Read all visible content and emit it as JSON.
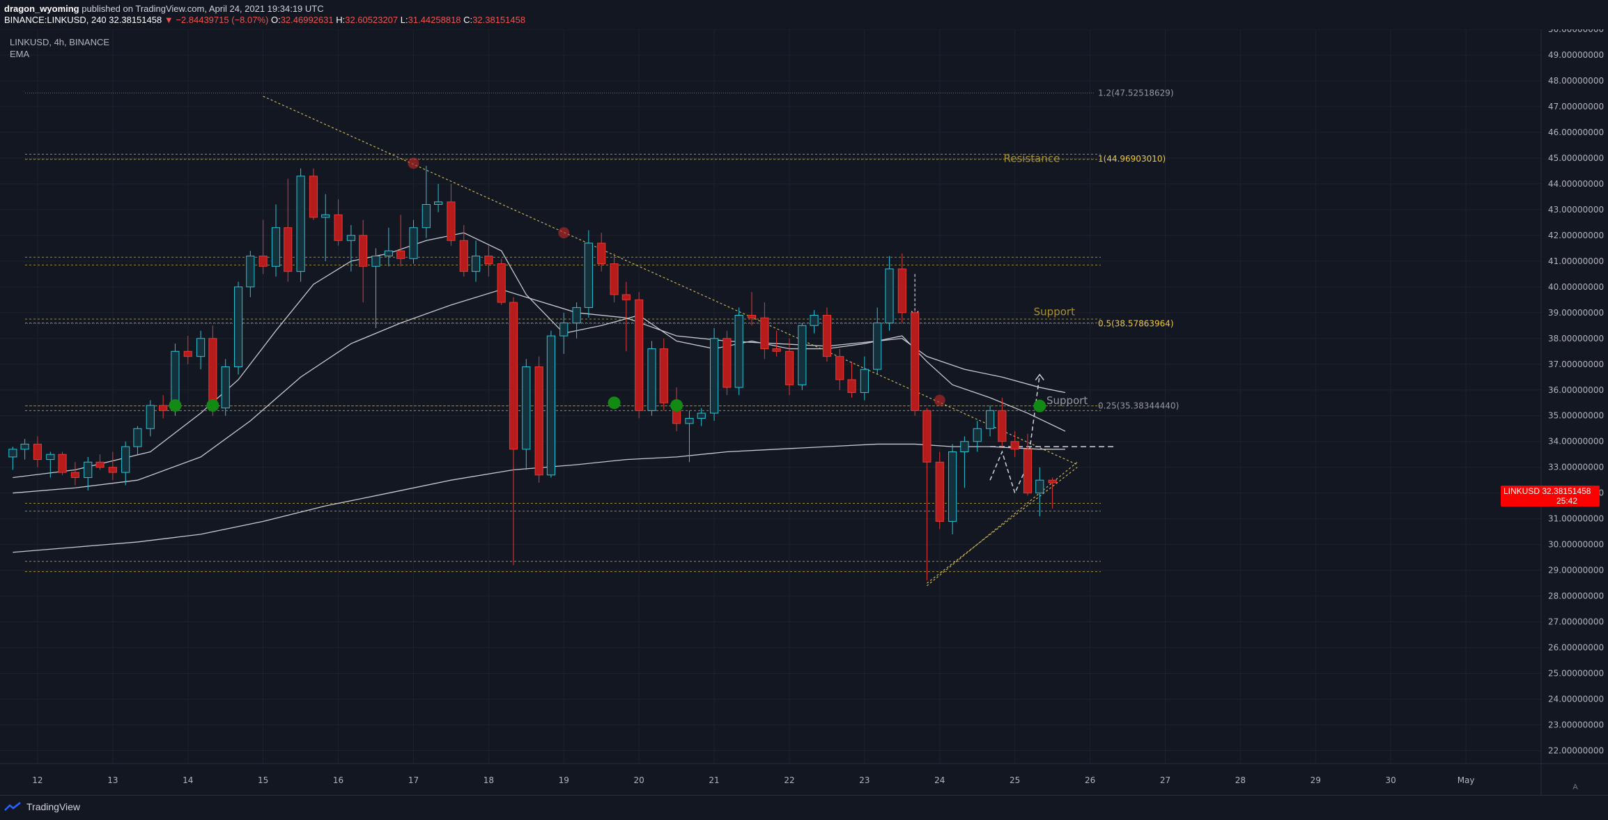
{
  "header": {
    "publisher": "dragon_wyoming",
    "published_text": "published on TradingView.com, April 24, 2021 19:34:19 UTC",
    "symbol_full": "BINANCE:LINKUSD, 240",
    "last": "32.38151458",
    "change": "▼ −2.84439715 (−8.07%)",
    "o_label": "O:",
    "o": "32.46992631",
    "h_label": "H:",
    "h": "32.60523207",
    "l_label": "L:",
    "l": "31.44258818",
    "c_label": "C:",
    "c": "32.38151458"
  },
  "legend": {
    "title": "LINKUSD, 4h, BINANCE",
    "indicator": "EMA"
  },
  "price_tag": {
    "symbol": "LINKUSD",
    "price": "32.38151458",
    "countdown": "25:42"
  },
  "footer": {
    "brand": "TradingView",
    "logo_icon": "tradingview-logo-icon",
    "axis_settings": "A"
  },
  "colors": {
    "up": "#26c6da",
    "down": "#b71c1c",
    "fib": "#c9b458",
    "grid": "#1e222d",
    "bg": "#131722"
  },
  "chart_data": {
    "type": "candlestick",
    "ylim": [
      21.5,
      50.0
    ],
    "y_ticks": [
      "22.00000000",
      "23.00000000",
      "24.00000000",
      "25.00000000",
      "26.00000000",
      "27.00000000",
      "28.00000000",
      "29.00000000",
      "30.00000000",
      "31.00000000",
      "32.00000000",
      "33.00000000",
      "34.00000000",
      "35.00000000",
      "36.00000000",
      "37.00000000",
      "38.00000000",
      "39.00000000",
      "40.00000000",
      "41.00000000",
      "42.00000000",
      "43.00000000",
      "44.00000000",
      "45.00000000",
      "46.00000000",
      "47.00000000",
      "48.00000000",
      "49.00000000",
      "50.00000000"
    ],
    "x_ticks": [
      {
        "label": "12",
        "x": 12.0
      },
      {
        "label": "13",
        "x": 13.0
      },
      {
        "label": "14",
        "x": 14.0
      },
      {
        "label": "15",
        "x": 15.0
      },
      {
        "label": "16",
        "x": 16.0
      },
      {
        "label": "17",
        "x": 17.0
      },
      {
        "label": "18",
        "x": 18.0
      },
      {
        "label": "19",
        "x": 19.0
      },
      {
        "label": "20",
        "x": 20.0
      },
      {
        "label": "21",
        "x": 21.0
      },
      {
        "label": "22",
        "x": 22.0
      },
      {
        "label": "23",
        "x": 23.0
      },
      {
        "label": "24",
        "x": 24.0
      },
      {
        "label": "25",
        "x": 25.0
      },
      {
        "label": "26",
        "x": 26.0
      },
      {
        "label": "27",
        "x": 27.0
      },
      {
        "label": "28",
        "x": 28.0
      },
      {
        "label": "29",
        "x": 29.0
      },
      {
        "label": "30",
        "x": 30.0
      },
      {
        "label": "May",
        "x": 31.0
      }
    ],
    "xlim": [
      11.5,
      32.0
    ],
    "candles": [
      [
        11.67,
        33.4,
        33.8,
        32.9,
        33.7
      ],
      [
        11.83,
        33.7,
        34.1,
        33.3,
        33.9
      ],
      [
        12.0,
        33.9,
        34.2,
        33.0,
        33.3
      ],
      [
        12.17,
        33.3,
        33.6,
        32.6,
        33.5
      ],
      [
        12.33,
        33.5,
        33.6,
        32.7,
        32.8
      ],
      [
        12.5,
        32.8,
        33.2,
        32.3,
        32.6
      ],
      [
        12.67,
        32.6,
        33.4,
        32.1,
        33.2
      ],
      [
        12.83,
        33.2,
        33.5,
        32.9,
        33.0
      ],
      [
        13.0,
        33.0,
        33.6,
        32.5,
        32.8
      ],
      [
        13.17,
        32.8,
        34.0,
        32.3,
        33.8
      ],
      [
        13.33,
        33.8,
        34.6,
        33.5,
        34.5
      ],
      [
        13.5,
        34.5,
        35.6,
        34.2,
        35.4
      ],
      [
        13.67,
        35.4,
        35.8,
        34.9,
        35.2
      ],
      [
        13.83,
        35.2,
        37.8,
        35.0,
        37.5
      ],
      [
        14.0,
        37.5,
        38.1,
        37.0,
        37.3
      ],
      [
        14.17,
        37.3,
        38.3,
        36.8,
        38.0
      ],
      [
        14.33,
        38.0,
        38.5,
        35.0,
        35.3
      ],
      [
        14.5,
        35.3,
        37.2,
        35.0,
        36.9
      ],
      [
        14.67,
        36.9,
        40.2,
        36.6,
        40.0
      ],
      [
        14.83,
        40.0,
        41.4,
        39.6,
        41.2
      ],
      [
        15.0,
        41.2,
        42.6,
        40.5,
        40.8
      ],
      [
        15.17,
        40.8,
        43.2,
        40.4,
        42.3
      ],
      [
        15.33,
        42.3,
        44.2,
        40.2,
        40.6
      ],
      [
        15.5,
        40.6,
        44.6,
        40.2,
        44.3
      ],
      [
        15.67,
        44.3,
        44.6,
        42.6,
        42.7
      ],
      [
        15.83,
        42.7,
        43.6,
        41.0,
        42.8
      ],
      [
        16.0,
        42.8,
        43.4,
        41.6,
        41.8
      ],
      [
        16.17,
        41.8,
        42.4,
        40.6,
        42.0
      ],
      [
        16.33,
        42.0,
        42.6,
        39.4,
        40.8
      ],
      [
        16.5,
        40.8,
        41.5,
        38.4,
        41.2
      ],
      [
        16.67,
        41.2,
        42.3,
        40.8,
        41.4
      ],
      [
        16.83,
        41.4,
        42.8,
        40.8,
        41.1
      ],
      [
        17.0,
        41.1,
        42.6,
        40.9,
        42.3
      ],
      [
        17.17,
        42.3,
        44.7,
        41.9,
        43.2
      ],
      [
        17.33,
        43.2,
        44.0,
        42.9,
        43.3
      ],
      [
        17.5,
        43.3,
        44.0,
        41.6,
        41.8
      ],
      [
        17.67,
        41.8,
        42.4,
        40.4,
        40.6
      ],
      [
        17.83,
        40.6,
        41.8,
        40.2,
        41.2
      ],
      [
        18.0,
        41.2,
        41.6,
        40.4,
        40.9
      ],
      [
        18.17,
        40.9,
        41.1,
        39.3,
        39.4
      ],
      [
        18.33,
        39.4,
        39.6,
        29.2,
        33.7
      ],
      [
        18.5,
        33.7,
        37.2,
        32.9,
        36.9
      ],
      [
        18.67,
        36.9,
        37.3,
        32.4,
        32.7
      ],
      [
        18.83,
        32.7,
        38.3,
        32.6,
        38.1
      ],
      [
        19.0,
        38.1,
        39.0,
        37.4,
        38.6
      ],
      [
        19.17,
        38.6,
        39.4,
        38.0,
        39.2
      ],
      [
        19.33,
        39.2,
        42.2,
        38.8,
        41.7
      ],
      [
        19.5,
        41.7,
        42.1,
        40.6,
        40.9
      ],
      [
        19.67,
        40.9,
        41.3,
        39.4,
        39.7
      ],
      [
        19.83,
        39.7,
        40.2,
        37.5,
        39.5
      ],
      [
        20.0,
        39.5,
        39.8,
        34.9,
        35.2
      ],
      [
        20.17,
        35.2,
        37.9,
        35.0,
        37.6
      ],
      [
        20.33,
        37.6,
        38.0,
        35.2,
        35.5
      ],
      [
        20.5,
        35.5,
        36.1,
        34.4,
        34.7
      ],
      [
        20.67,
        34.7,
        35.2,
        33.2,
        34.9
      ],
      [
        20.83,
        34.9,
        35.3,
        34.6,
        35.1
      ],
      [
        21.0,
        35.1,
        38.4,
        34.8,
        38.0
      ],
      [
        21.17,
        38.0,
        38.3,
        35.8,
        36.1
      ],
      [
        21.33,
        36.1,
        39.2,
        35.8,
        38.9
      ],
      [
        21.5,
        38.9,
        39.8,
        38.5,
        38.8
      ],
      [
        21.67,
        38.8,
        39.4,
        37.2,
        37.6
      ],
      [
        21.83,
        37.6,
        38.3,
        37.3,
        37.5
      ],
      [
        22.0,
        37.5,
        38.0,
        35.8,
        36.2
      ],
      [
        22.17,
        36.2,
        38.6,
        36.0,
        38.5
      ],
      [
        22.33,
        38.5,
        39.1,
        38.2,
        38.9
      ],
      [
        22.5,
        38.9,
        39.2,
        37.1,
        37.3
      ],
      [
        22.67,
        37.3,
        37.6,
        36.0,
        36.4
      ],
      [
        22.83,
        36.4,
        37.1,
        35.7,
        35.9
      ],
      [
        23.0,
        35.9,
        37.3,
        35.6,
        36.8
      ],
      [
        23.17,
        36.8,
        39.2,
        36.6,
        38.6
      ],
      [
        23.33,
        38.6,
        41.2,
        38.3,
        40.7
      ],
      [
        23.5,
        40.7,
        41.3,
        38.6,
        39.0
      ],
      [
        23.67,
        39.0,
        39.1,
        35.0,
        35.2
      ],
      [
        23.83,
        35.2,
        35.3,
        28.6,
        33.2
      ],
      [
        24.0,
        33.2,
        33.6,
        30.6,
        30.9
      ],
      [
        24.17,
        30.9,
        33.9,
        30.4,
        33.6
      ],
      [
        24.33,
        33.6,
        34.2,
        32.2,
        34.0
      ],
      [
        24.5,
        34.0,
        34.8,
        33.6,
        34.5
      ],
      [
        24.67,
        34.5,
        35.4,
        34.2,
        35.2
      ],
      [
        24.83,
        35.2,
        35.7,
        33.8,
        34.0
      ],
      [
        25.0,
        34.0,
        34.4,
        33.4,
        33.7
      ],
      [
        25.17,
        33.7,
        34.3,
        31.9,
        32.0
      ],
      [
        25.33,
        32.0,
        33.0,
        31.1,
        32.5
      ],
      [
        25.5,
        32.5,
        32.6,
        31.4,
        32.4
      ]
    ],
    "ema_short": [
      [
        11.67,
        32.6
      ],
      [
        12.5,
        32.9
      ],
      [
        13.5,
        33.6
      ],
      [
        14.17,
        35.1
      ],
      [
        14.67,
        36.4
      ],
      [
        15.17,
        38.3
      ],
      [
        15.67,
        40.1
      ],
      [
        16.17,
        41.0
      ],
      [
        16.67,
        41.3
      ],
      [
        17.17,
        41.8
      ],
      [
        17.67,
        42.1
      ],
      [
        18.17,
        41.4
      ],
      [
        18.5,
        39.7
      ],
      [
        19.0,
        38.2
      ],
      [
        19.5,
        38.5
      ],
      [
        20.0,
        38.9
      ],
      [
        20.5,
        37.9
      ],
      [
        21.0,
        37.6
      ],
      [
        21.5,
        37.9
      ],
      [
        22.0,
        37.6
      ],
      [
        22.5,
        37.6
      ],
      [
        23.0,
        37.8
      ],
      [
        23.5,
        38.1
      ],
      [
        23.83,
        37.1
      ],
      [
        24.17,
        36.2
      ],
      [
        24.67,
        35.7
      ],
      [
        25.17,
        35.1
      ],
      [
        25.67,
        34.4
      ]
    ],
    "ema_mid": [
      [
        11.67,
        32.0
      ],
      [
        12.5,
        32.2
      ],
      [
        13.33,
        32.5
      ],
      [
        14.17,
        33.4
      ],
      [
        14.83,
        34.8
      ],
      [
        15.5,
        36.5
      ],
      [
        16.17,
        37.8
      ],
      [
        16.83,
        38.6
      ],
      [
        17.5,
        39.3
      ],
      [
        18.17,
        39.9
      ],
      [
        18.5,
        39.6
      ],
      [
        19.17,
        39.0
      ],
      [
        19.83,
        38.8
      ],
      [
        20.5,
        38.1
      ],
      [
        21.17,
        37.9
      ],
      [
        21.83,
        37.8
      ],
      [
        22.5,
        37.7
      ],
      [
        23.17,
        37.9
      ],
      [
        23.5,
        38.0
      ],
      [
        23.83,
        37.3
      ],
      [
        24.33,
        36.8
      ],
      [
        24.83,
        36.5
      ],
      [
        25.33,
        36.1
      ],
      [
        25.67,
        35.9
      ]
    ],
    "ema_long": [
      [
        11.67,
        29.7
      ],
      [
        12.5,
        29.9
      ],
      [
        13.33,
        30.1
      ],
      [
        14.17,
        30.4
      ],
      [
        15.0,
        30.9
      ],
      [
        15.83,
        31.5
      ],
      [
        16.67,
        32.0
      ],
      [
        17.5,
        32.5
      ],
      [
        18.33,
        32.9
      ],
      [
        19.17,
        33.1
      ],
      [
        19.83,
        33.3
      ],
      [
        20.5,
        33.4
      ],
      [
        21.17,
        33.6
      ],
      [
        21.83,
        33.7
      ],
      [
        22.5,
        33.8
      ],
      [
        23.17,
        33.9
      ],
      [
        23.67,
        33.9
      ],
      [
        24.17,
        33.8
      ],
      [
        24.67,
        33.8
      ],
      [
        25.33,
        33.7
      ],
      [
        25.67,
        33.7
      ]
    ],
    "fib_levels": [
      {
        "value": 47.52518629,
        "label": "1.2(47.52518629)"
      },
      {
        "value": 44.9690301,
        "label": "1(44.96903010)"
      },
      {
        "value": 38.57863964,
        "label": "0.5(38.57863964)"
      },
      {
        "value": 35.3834444,
        "label": "0.25(35.38344440)"
      }
    ],
    "zone_lines": [
      45.15,
      44.95,
      41.15,
      40.85,
      38.75,
      38.6,
      35.38,
      35.2,
      31.6,
      31.3,
      29.35,
      28.95
    ],
    "annotations": [
      {
        "text": "Resistance",
        "x": 24.85,
        "y": 44.85
      },
      {
        "text": "Support",
        "x": 25.25,
        "y": 38.9
      },
      {
        "text": "Support",
        "x": 25.42,
        "y": 35.45
      }
    ],
    "trendlines": [
      {
        "from": [
          15.0,
          47.4
        ],
        "to": [
          25.83,
          33.1
        ]
      },
      {
        "from": [
          23.83,
          28.4
        ],
        "to": [
          25.83,
          33.2
        ]
      },
      {
        "from": [
          23.83,
          28.5
        ],
        "to": [
          25.83,
          33.0
        ]
      }
    ],
    "markers_green": [
      [
        13.83,
        35.4
      ],
      [
        14.33,
        35.4
      ],
      [
        19.67,
        35.5
      ],
      [
        20.5,
        35.4
      ],
      [
        25.33,
        35.38
      ]
    ],
    "markers_red": [
      [
        17.0,
        44.8
      ],
      [
        19.0,
        42.1
      ],
      [
        24.0,
        35.6
      ]
    ],
    "projection": [
      [
        24.67,
        32.5
      ],
      [
        24.83,
        33.6
      ],
      [
        25.0,
        32.0
      ],
      [
        25.17,
        33.1
      ],
      [
        25.33,
        36.6
      ]
    ],
    "horizontal_dashed": {
      "from": 24.67,
      "to": 26.33,
      "y": 33.8
    },
    "drop_arrow": {
      "x": 23.67,
      "from": 40.5,
      "to": 38.9
    }
  }
}
